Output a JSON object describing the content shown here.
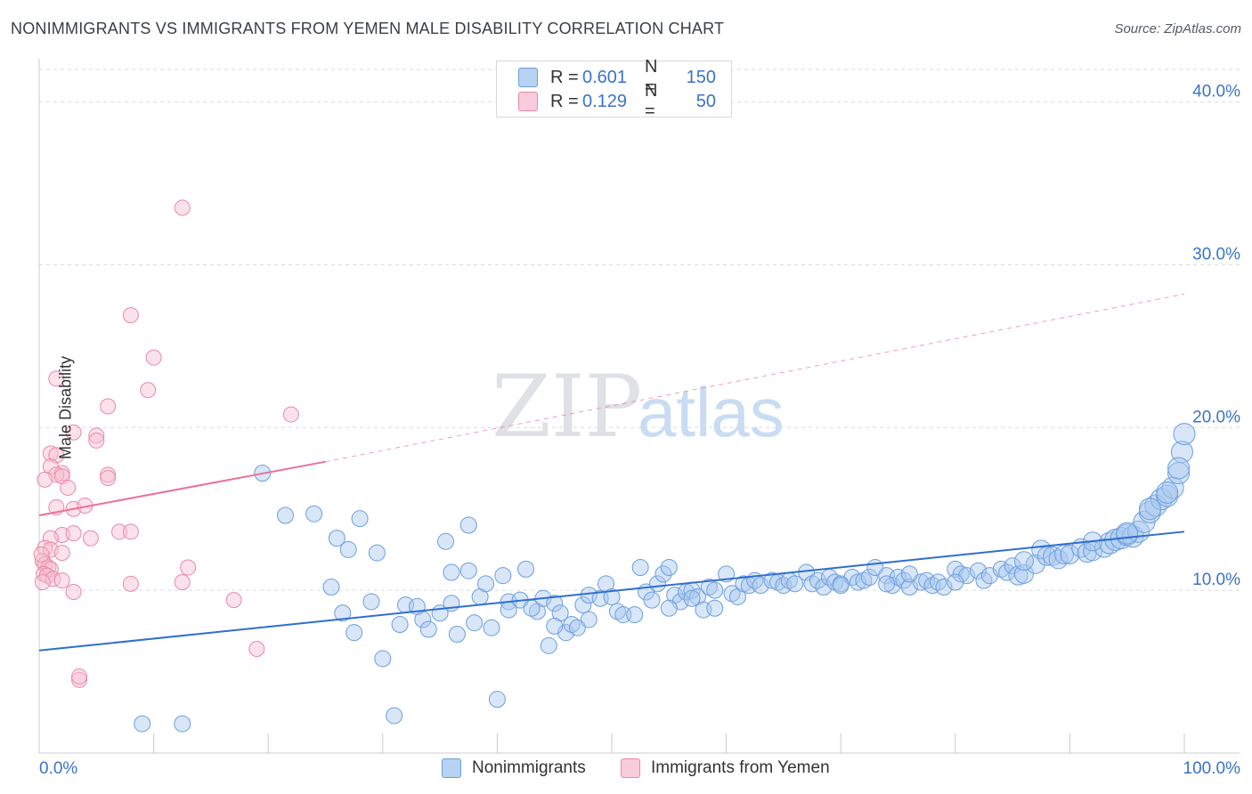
{
  "title": "NONIMMIGRANTS VS IMMIGRANTS FROM YEMEN MALE DISABILITY CORRELATION CHART",
  "source": "Source: ZipAtlas.com",
  "watermark": {
    "zip": "ZIP",
    "atlas": "atlas"
  },
  "legend": {
    "r_label": "R =",
    "n_label": "N =",
    "rows": [
      {
        "name": "Nonimmigrants",
        "r": "0.601",
        "n": "150",
        "color": "#a9c8f0",
        "edge": "#6b9edc"
      },
      {
        "name": "Immigrants from Yemen",
        "r": "0.129",
        "n": "50",
        "color": "#f6bfd0",
        "edge": "#e88aa7"
      }
    ]
  },
  "colors": {
    "blue_line": "#2f6fcf",
    "pink_line": "#e8729a",
    "grid": "#d8dbe0",
    "axis_text": "#3a73c9"
  },
  "chart_data": {
    "type": "scatter",
    "xlabel": "",
    "ylabel": "Male Disability",
    "xlim": [
      0,
      100
    ],
    "ylim": [
      0,
      42
    ],
    "x_tick_labels": [
      "0.0%",
      "100.0%"
    ],
    "y_ticks": [
      10,
      20,
      30,
      40
    ],
    "y_tick_labels": [
      "10.0%",
      "20.0%",
      "30.0%",
      "40.0%"
    ],
    "grid": true,
    "legend_position": "top-center",
    "series": [
      {
        "name": "Nonimmigrants",
        "color": "#a9c8f0",
        "trend": {
          "x": [
            0,
            100
          ],
          "y": [
            6.3,
            13.6
          ]
        },
        "points": [
          [
            9,
            1.8
          ],
          [
            12.5,
            1.8
          ],
          [
            19.5,
            17.2
          ],
          [
            21.5,
            14.6
          ],
          [
            24,
            14.7
          ],
          [
            26,
            13.2
          ],
          [
            27,
            12.5
          ],
          [
            28,
            14.4
          ],
          [
            25.5,
            10.2
          ],
          [
            26.5,
            8.6
          ],
          [
            27.5,
            7.4
          ],
          [
            29.5,
            12.3
          ],
          [
            29,
            9.3
          ],
          [
            30,
            5.8
          ],
          [
            31,
            2.3
          ],
          [
            31.5,
            7.9
          ],
          [
            32,
            9.1
          ],
          [
            33.5,
            8.2
          ],
          [
            34,
            7.6
          ],
          [
            35,
            8.6
          ],
          [
            36.5,
            7.3
          ],
          [
            35.5,
            13
          ],
          [
            36,
            11.1
          ],
          [
            37.5,
            11.2
          ],
          [
            37.5,
            14.0
          ],
          [
            38.5,
            9.6
          ],
          [
            39,
            10.4
          ],
          [
            39.5,
            7.7
          ],
          [
            40,
            3.3
          ],
          [
            40.5,
            10.9
          ],
          [
            41,
            9.3
          ],
          [
            42,
            9.4
          ],
          [
            42.5,
            11.3
          ],
          [
            43.5,
            8.7
          ],
          [
            44,
            9.5
          ],
          [
            44.5,
            6.6
          ],
          [
            45,
            9.2
          ],
          [
            45.5,
            8.6
          ],
          [
            46,
            7.4
          ],
          [
            46.5,
            7.9
          ],
          [
            47,
            7.7
          ],
          [
            47.5,
            9.1
          ],
          [
            48,
            9.7
          ],
          [
            49,
            9.5
          ],
          [
            49.5,
            10.4
          ],
          [
            50,
            9.6
          ],
          [
            50.5,
            8.7
          ],
          [
            51,
            8.5
          ],
          [
            52,
            8.5
          ],
          [
            52.5,
            11.4
          ],
          [
            53,
            9.9
          ],
          [
            53.5,
            9.4
          ],
          [
            54,
            10.4
          ],
          [
            54.5,
            11.0
          ],
          [
            55,
            11.4
          ],
          [
            55.5,
            9.7
          ],
          [
            56,
            9.3
          ],
          [
            56.5,
            9.9
          ],
          [
            57,
            10.0
          ],
          [
            57.5,
            9.6
          ],
          [
            58,
            8.8
          ],
          [
            58.5,
            10.2
          ],
          [
            59,
            8.9
          ],
          [
            60,
            11.0
          ],
          [
            60.5,
            9.8
          ],
          [
            61,
            9.6
          ],
          [
            61.5,
            10.4
          ],
          [
            62,
            10.3
          ],
          [
            62.5,
            10.6
          ],
          [
            63,
            10.3
          ],
          [
            64,
            10.6
          ],
          [
            64.5,
            10.5
          ],
          [
            65,
            10.3
          ],
          [
            65.5,
            10.6
          ],
          [
            66,
            10.4
          ],
          [
            67,
            11.1
          ],
          [
            67.5,
            10.4
          ],
          [
            68,
            10.6
          ],
          [
            68.5,
            10.2
          ],
          [
            69,
            10.8
          ],
          [
            69.5,
            10.5
          ],
          [
            70,
            10.4
          ],
          [
            71,
            10.8
          ],
          [
            71.5,
            10.5
          ],
          [
            72,
            10.6
          ],
          [
            72.5,
            10.8
          ],
          [
            73,
            11.4
          ],
          [
            74,
            10.9
          ],
          [
            74.5,
            10.3
          ],
          [
            75,
            10.8
          ],
          [
            75.5,
            10.6
          ],
          [
            76,
            10.2
          ],
          [
            77,
            10.5
          ],
          [
            77.5,
            10.6
          ],
          [
            78,
            10.3
          ],
          [
            78.5,
            10.5
          ],
          [
            79,
            10.2
          ],
          [
            80,
            11.3
          ],
          [
            80.5,
            11.0
          ],
          [
            81,
            10.9
          ],
          [
            82,
            11.2
          ],
          [
            82.5,
            10.6
          ],
          [
            83,
            10.9
          ],
          [
            84,
            11.3
          ],
          [
            84.5,
            11.1
          ],
          [
            85,
            11.5
          ],
          [
            85.5,
            10.9
          ],
          [
            86,
            11.0
          ],
          [
            87,
            11.6
          ],
          [
            87.5,
            12.5
          ],
          [
            88,
            12.1
          ],
          [
            88.5,
            12.1
          ],
          [
            89,
            11.9
          ],
          [
            89.5,
            12.2
          ],
          [
            90,
            12.2
          ],
          [
            91,
            12.6
          ],
          [
            91.5,
            12.3
          ],
          [
            92,
            12.4
          ],
          [
            93,
            12.6
          ],
          [
            93.5,
            12.9
          ],
          [
            94,
            13.1
          ],
          [
            94.5,
            13.2
          ],
          [
            95,
            13.4
          ],
          [
            95.5,
            13.3
          ],
          [
            96,
            13.6
          ],
          [
            96.5,
            14.2
          ],
          [
            97,
            14.8
          ],
          [
            97.5,
            15.2
          ],
          [
            98,
            15.6
          ],
          [
            98.5,
            15.8
          ],
          [
            99,
            16.3
          ],
          [
            99.5,
            17.2
          ],
          [
            99.8,
            18.5
          ],
          [
            100,
            19.6
          ],
          [
            76,
            11.0
          ],
          [
            80,
            10.5
          ],
          [
            86,
            11.8
          ],
          [
            92,
            13.0
          ],
          [
            95,
            13.5
          ],
          [
            97,
            15.0
          ],
          [
            98.5,
            16.0
          ],
          [
            99.5,
            17.5
          ],
          [
            74,
            10.4
          ],
          [
            70,
            10.3
          ],
          [
            59,
            10.0
          ],
          [
            57,
            9.5
          ],
          [
            55,
            8.9
          ],
          [
            48,
            8.2
          ],
          [
            45,
            7.8
          ],
          [
            43,
            8.9
          ],
          [
            41,
            8.8
          ],
          [
            33,
            9.0
          ],
          [
            36,
            9.2
          ],
          [
            38,
            8.0
          ]
        ]
      },
      {
        "name": "Immigrants from Yemen",
        "color": "#f6bfd0",
        "trend": {
          "x": [
            0,
            25
          ],
          "y": [
            14.6,
            17.9
          ]
        },
        "trend_ext": {
          "x": [
            25,
            100
          ],
          "y": [
            17.9,
            28.2
          ]
        },
        "points": [
          [
            12.5,
            33.5
          ],
          [
            8,
            26.9
          ],
          [
            10,
            24.3
          ],
          [
            1.5,
            23.0
          ],
          [
            9.5,
            22.3
          ],
          [
            6,
            21.3
          ],
          [
            22,
            20.8
          ],
          [
            3,
            19.7
          ],
          [
            5,
            19.5
          ],
          [
            5,
            19.2
          ],
          [
            1,
            18.4
          ],
          [
            1.5,
            18.3
          ],
          [
            1,
            17.6
          ],
          [
            2,
            17.2
          ],
          [
            1.5,
            17.1
          ],
          [
            2,
            17.0
          ],
          [
            6,
            17.1
          ],
          [
            6,
            16.9
          ],
          [
            0.5,
            16.8
          ],
          [
            2.5,
            16.3
          ],
          [
            1.5,
            15.1
          ],
          [
            3,
            15.0
          ],
          [
            4,
            15.2
          ],
          [
            2,
            13.4
          ],
          [
            3,
            13.5
          ],
          [
            1,
            13.2
          ],
          [
            4.5,
            13.2
          ],
          [
            7,
            13.6
          ],
          [
            8,
            13.6
          ],
          [
            0.5,
            12.6
          ],
          [
            1,
            12.5
          ],
          [
            2,
            12.3
          ],
          [
            0.3,
            11.8
          ],
          [
            0.5,
            11.6
          ],
          [
            0.8,
            11.4
          ],
          [
            1,
            11.3
          ],
          [
            0.4,
            11.0
          ],
          [
            0.7,
            10.9
          ],
          [
            1.2,
            10.7
          ],
          [
            0.3,
            10.5
          ],
          [
            2,
            10.6
          ],
          [
            8,
            10.4
          ],
          [
            12.5,
            10.5
          ],
          [
            13,
            11.4
          ],
          [
            3,
            9.9
          ],
          [
            17,
            9.4
          ],
          [
            19,
            6.4
          ],
          [
            3.5,
            4.5
          ],
          [
            3.5,
            4.7
          ],
          [
            0.2,
            12.2
          ]
        ]
      }
    ]
  }
}
